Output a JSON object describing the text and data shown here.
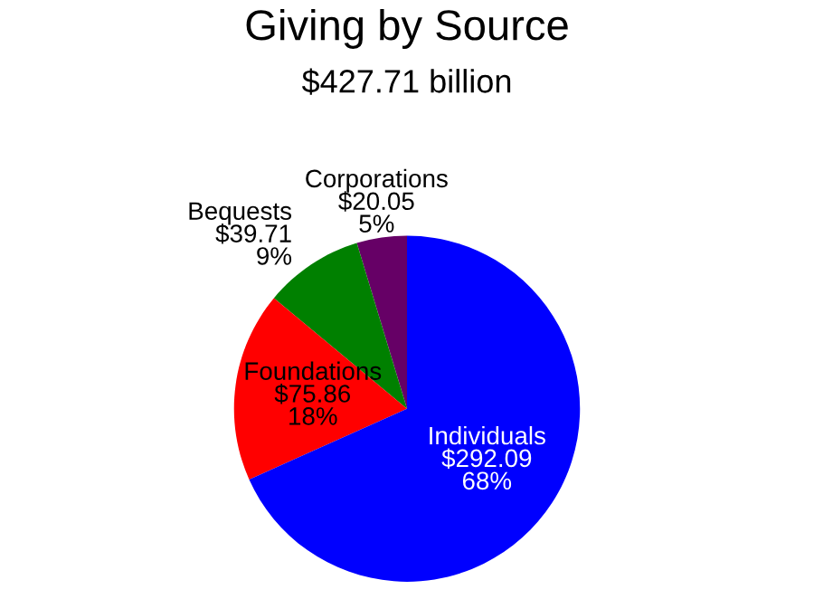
{
  "chart_data": {
    "type": "pie",
    "title": "Giving by Source",
    "subtitle": "$427.71 billion",
    "categories": [
      "Corporations",
      "Bequests",
      "Foundations",
      "Individuals"
    ],
    "values": [
      20.05,
      39.71,
      75.86,
      292.09
    ],
    "colors": [
      "#660066",
      "#008000",
      "#ff0000",
      "#0000ff"
    ],
    "value_labels": [
      "$20.05\n5%",
      "$39.71\n9%",
      "$75.86\n18%",
      "$292.09\n68%"
    ],
    "legend": false
  }
}
